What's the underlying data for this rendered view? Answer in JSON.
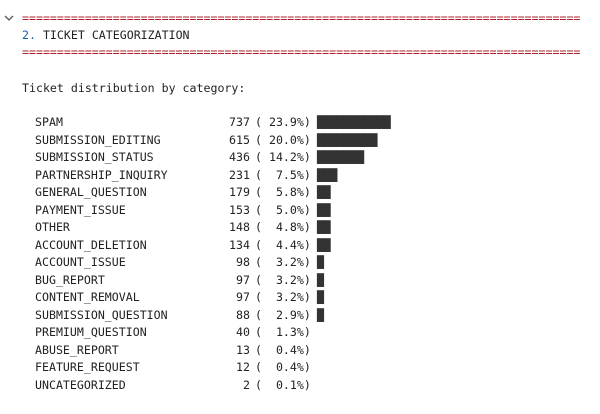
{
  "separator": "================================================================================",
  "heading": {
    "number": "2.",
    "title": "TICKET CATEGORIZATION"
  },
  "caption": "Ticket distribution by category:",
  "rows": [
    {
      "name": "SPAM",
      "count": 737,
      "share": "( 23.9%)",
      "bar": "███████████"
    },
    {
      "name": "SUBMISSION_EDITING",
      "count": 615,
      "share": "( 20.0%)",
      "bar": "█████████"
    },
    {
      "name": "SUBMISSION_STATUS",
      "count": 436,
      "share": "( 14.2%)",
      "bar": "███████"
    },
    {
      "name": "PARTNERSHIP_INQUIRY",
      "count": 231,
      "share": "(  7.5%)",
      "bar": "███"
    },
    {
      "name": "GENERAL_QUESTION",
      "count": 179,
      "share": "(  5.8%)",
      "bar": "██"
    },
    {
      "name": "PAYMENT_ISSUE",
      "count": 153,
      "share": "(  5.0%)",
      "bar": "██"
    },
    {
      "name": "OTHER",
      "count": 148,
      "share": "(  4.8%)",
      "bar": "██"
    },
    {
      "name": "ACCOUNT_DELETION",
      "count": 134,
      "share": "(  4.4%)",
      "bar": "██"
    },
    {
      "name": "ACCOUNT_ISSUE",
      "count": 98,
      "share": "(  3.2%)",
      "bar": "█"
    },
    {
      "name": "BUG_REPORT",
      "count": 97,
      "share": "(  3.2%)",
      "bar": "█"
    },
    {
      "name": "CONTENT_REMOVAL",
      "count": 97,
      "share": "(  3.2%)",
      "bar": "█"
    },
    {
      "name": "SUBMISSION_QUESTION",
      "count": 88,
      "share": "(  2.9%)",
      "bar": "█"
    },
    {
      "name": "PREMIUM_QUESTION",
      "count": 40,
      "share": "(  1.3%)",
      "bar": null
    },
    {
      "name": "ABUSE_REPORT",
      "count": 13,
      "share": "(  0.4%)",
      "bar": null
    },
    {
      "name": "FEATURE_REQUEST",
      "count": 12,
      "share": "(  0.4%)",
      "bar": null
    },
    {
      "name": "UNCATEGORIZED",
      "count": 2,
      "share": "(  0.1%)",
      "bar": null
    }
  ]
}
